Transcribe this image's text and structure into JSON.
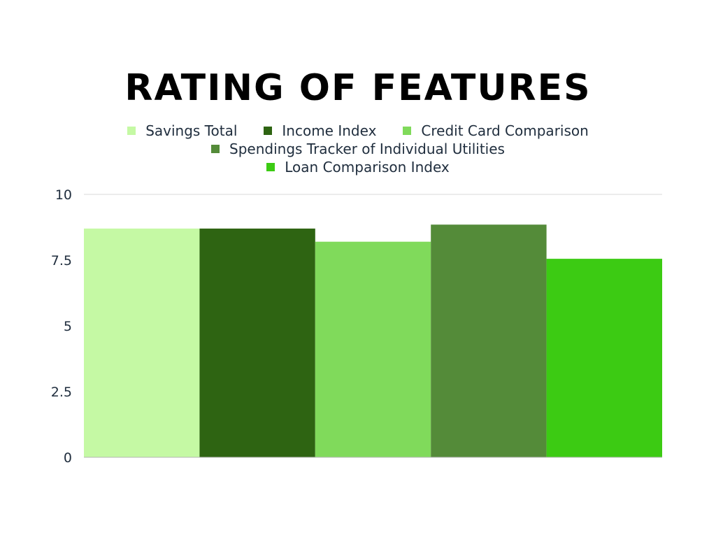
{
  "chart_data": {
    "type": "bar",
    "title": "RATING OF FEATURES",
    "xlabel": "",
    "ylabel": "",
    "ylim": [
      0,
      10
    ],
    "yticks": [
      "0",
      "2.5",
      "5",
      "7.5",
      "10"
    ],
    "grid": true,
    "legend_position": "top-center",
    "series": [
      {
        "name": "Savings Total",
        "value": 8.7,
        "color": "#c5f9a4"
      },
      {
        "name": "Income Index",
        "value": 8.7,
        "color": "#2e6412"
      },
      {
        "name": "Credit Card Comparison",
        "value": 8.2,
        "color": "#80da5b"
      },
      {
        "name": "Spendings Tracker of Individual Utilities",
        "value": 8.85,
        "color": "#548b39"
      },
      {
        "name": "Loan Comparison Index",
        "value": 7.55,
        "color": "#3ccb13"
      }
    ]
  }
}
